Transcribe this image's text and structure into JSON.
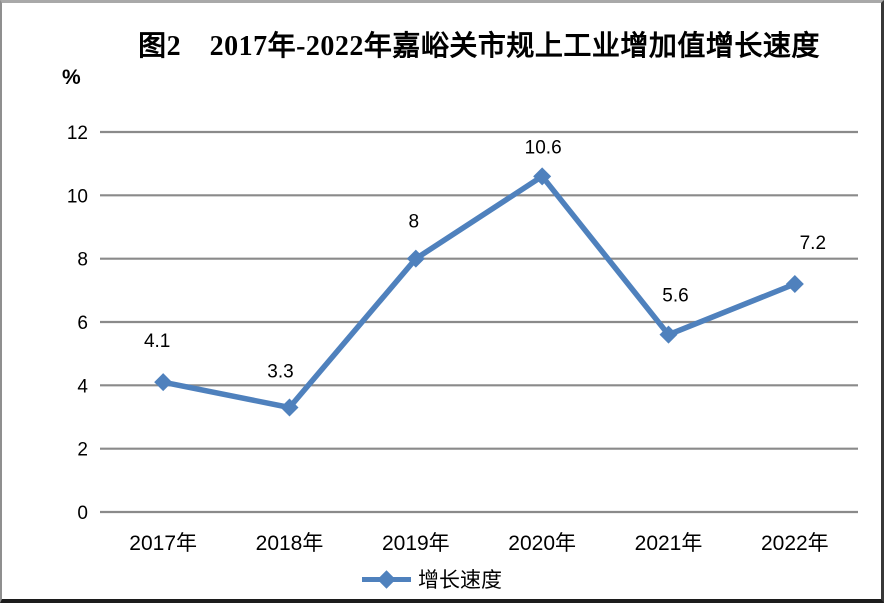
{
  "chart_data": {
    "type": "line",
    "title": "图2　2017年-2022年嘉峪关市规上工业增加值增长速度",
    "unit_label": "%",
    "categories": [
      "2017年",
      "2018年",
      "2019年",
      "2020年",
      "2021年",
      "2022年"
    ],
    "series": [
      {
        "name": "增长速度",
        "color": "#4F81BD",
        "values": [
          4.1,
          3.3,
          8,
          10.6,
          5.6,
          7.2
        ],
        "labels": [
          "4.1",
          "3.3",
          "8",
          "10.6",
          "5.6",
          "7.2"
        ]
      }
    ],
    "y_ticks": [
      "0",
      "2",
      "4",
      "6",
      "8",
      "10",
      "12"
    ],
    "ylim": [
      0,
      12
    ],
    "xlabel": "",
    "ylabel": "%",
    "grid": "horizontal-only",
    "gridline_color": "#8a8a8a",
    "axis_text_color": "#000000",
    "legend_position": "bottom-center",
    "marker_shape": "diamond"
  }
}
